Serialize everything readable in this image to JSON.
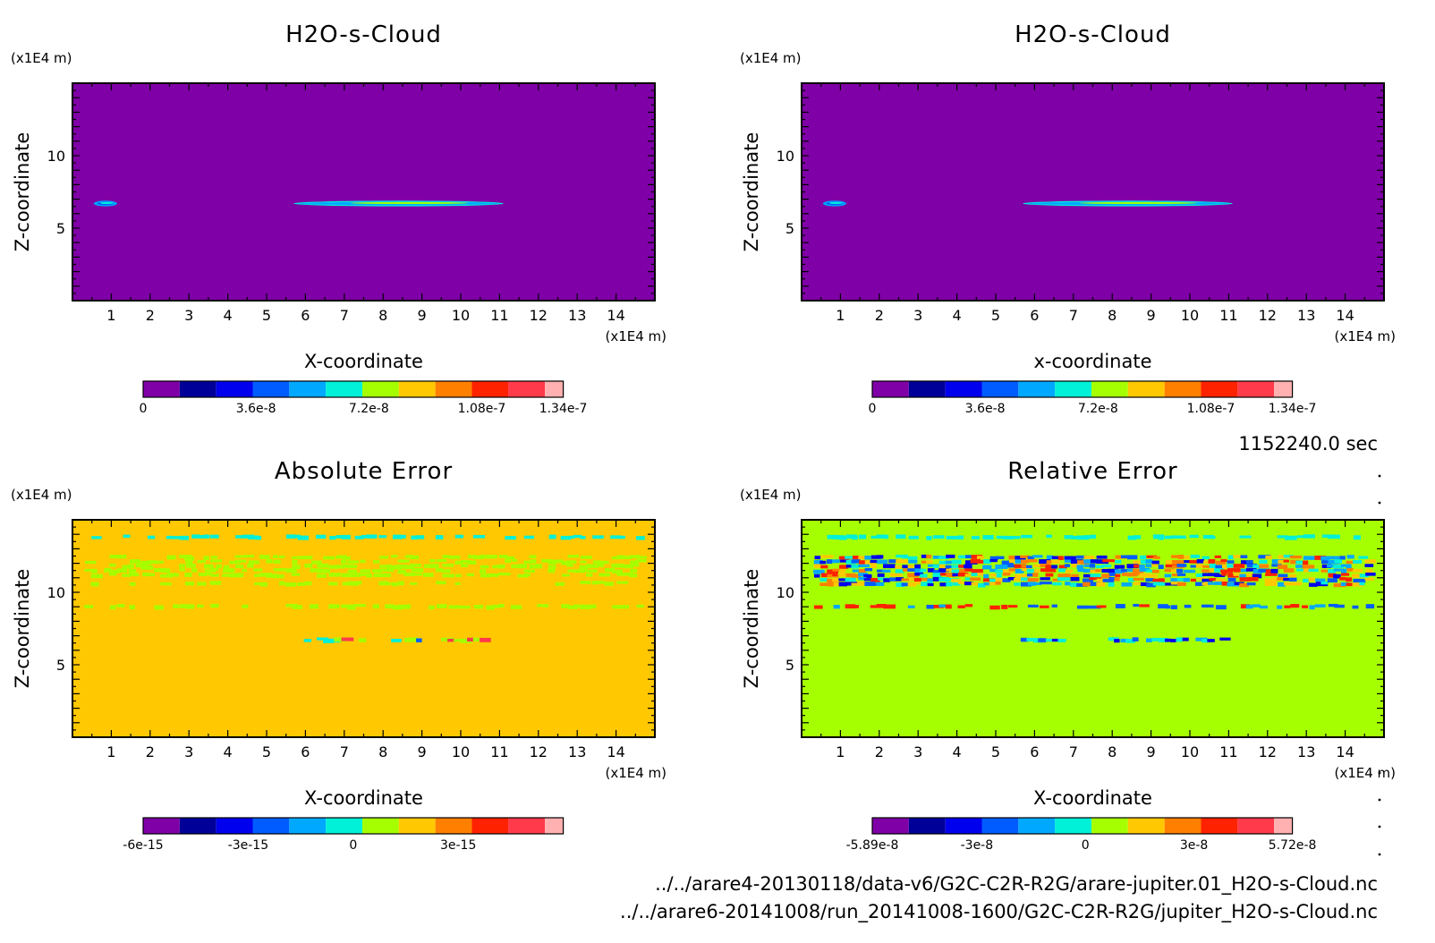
{
  "time_label": "1152240.0 sec",
  "footer": {
    "file1": "../../arare4-20130118/data-v6/G2C-C2R-R2G/arare-jupiter.01_H2O-s-Cloud.nc",
    "file2": "../../arare6-20141008/run_20141008-1600/G2C-C2R-R2G/jupiter_H2O-s-Cloud.nc"
  },
  "colors": {
    "scale": [
      "#7f00a6",
      "#000099",
      "#0000ee",
      "#005cff",
      "#00a8ff",
      "#00f0d8",
      "#a6ff00",
      "#ffc800",
      "#ff7f00",
      "#ff2200",
      "#ff3a4a",
      "#ffb0b0"
    ],
    "frame": "#000000"
  },
  "chart_data": [
    {
      "type": "heatmap",
      "title": "H2O-s-Cloud",
      "xlabel": "X-coordinate",
      "ylabel": "Z-coordinate",
      "x_unit": "(x1E4 m)",
      "y_unit": "(x1E4 m)",
      "xlim": [
        0,
        15
      ],
      "ylim": [
        0,
        15
      ],
      "xticks": [
        1,
        2,
        3,
        4,
        5,
        6,
        7,
        8,
        9,
        10,
        11,
        12,
        13,
        14
      ],
      "yticks": [
        5,
        10
      ],
      "background_color": "#7f00a6",
      "colorbar": {
        "min": 0,
        "max": 1.34e-07,
        "labels": [
          "0",
          "3.6e-8",
          "7.2e-8",
          "1.08e-7",
          "1.34e-7"
        ],
        "label_values": [
          0,
          3.6e-08,
          7.2e-08,
          1.08e-07,
          1.34e-07
        ]
      },
      "features": [
        {
          "x": [
            0.55,
            1.15
          ],
          "z": 6.7,
          "level": 4
        },
        {
          "x": [
            5.7,
            11.1
          ],
          "z": 6.7,
          "level": 5
        }
      ]
    },
    {
      "type": "heatmap",
      "title": "H2O-s-Cloud",
      "xlabel": "x-coordinate",
      "ylabel": "Z-coordinate",
      "x_unit": "(x1E4 m)",
      "y_unit": "(x1E4 m)",
      "xlim": [
        0,
        15
      ],
      "ylim": [
        0,
        15
      ],
      "xticks": [
        1,
        2,
        3,
        4,
        5,
        6,
        7,
        8,
        9,
        10,
        11,
        12,
        13,
        14
      ],
      "yticks": [
        5,
        10
      ],
      "background_color": "#7f00a6",
      "colorbar": {
        "min": 0,
        "max": 1.34e-07,
        "labels": [
          "0",
          "3.6e-8",
          "7.2e-8",
          "1.08e-7",
          "1.34e-7"
        ],
        "label_values": [
          0,
          3.6e-08,
          7.2e-08,
          1.08e-07,
          1.34e-07
        ]
      },
      "features": [
        {
          "x": [
            0.55,
            1.15
          ],
          "z": 6.7,
          "level": 4
        },
        {
          "x": [
            5.7,
            11.1
          ],
          "z": 6.7,
          "level": 5
        }
      ]
    },
    {
      "type": "heatmap",
      "title": "Absolute Error",
      "xlabel": "X-coordinate",
      "ylabel": "Z-coordinate",
      "x_unit": "(x1E4 m)",
      "y_unit": "(x1E4 m)",
      "xlim": [
        0,
        15
      ],
      "ylim": [
        0,
        15
      ],
      "xticks": [
        1,
        2,
        3,
        4,
        5,
        6,
        7,
        8,
        9,
        10,
        11,
        12,
        13,
        14
      ],
      "yticks": [
        5,
        10
      ],
      "background_color": "#ffc800",
      "colorbar": {
        "min": -6e-15,
        "max": 6e-15,
        "labels": [
          "-6e-15",
          "-3e-15",
          "0",
          "3e-15"
        ],
        "label_values": [
          -6e-15,
          -3e-15,
          0,
          3e-15
        ]
      },
      "noise_bands": [
        {
          "z": [
            13.6,
            14.0
          ],
          "density": 0.55,
          "palette": [
            5
          ]
        },
        {
          "z": [
            11.2,
            12.6
          ],
          "density": 0.45,
          "palette": [
            6
          ]
        },
        {
          "z": [
            10.4,
            10.8
          ],
          "density": 0.35,
          "palette": [
            6
          ]
        },
        {
          "z": [
            8.9,
            9.2
          ],
          "density": 0.5,
          "palette": [
            6
          ]
        },
        {
          "z": [
            6.6,
            6.9
          ],
          "density": 0.55,
          "palette": [
            5,
            6,
            3,
            10
          ],
          "x": [
            5.6,
            11.0
          ]
        }
      ]
    },
    {
      "type": "heatmap",
      "title": "Relative Error",
      "xlabel": "X-coordinate",
      "ylabel": "Z-coordinate",
      "x_unit": "(x1E4 m)",
      "y_unit": "(x1E4 m)",
      "xlim": [
        0,
        15
      ],
      "ylim": [
        0,
        15
      ],
      "xticks": [
        1,
        2,
        3,
        4,
        5,
        6,
        7,
        8,
        9,
        10,
        11,
        12,
        13,
        14
      ],
      "yticks": [
        5,
        10
      ],
      "background_color": "#a6ff00",
      "colorbar": {
        "min": -5.89e-08,
        "max": 5.72e-08,
        "labels": [
          "-5.89e-8",
          "-3e-8",
          "0",
          "3e-8",
          "5.72e-8"
        ],
        "label_values": [
          -5.89e-08,
          -3e-08,
          0,
          3e-08,
          5.72e-08
        ]
      },
      "noise_bands": [
        {
          "z": [
            13.6,
            14.0
          ],
          "density": 0.55,
          "palette": [
            5
          ]
        },
        {
          "z": [
            10.4,
            12.6
          ],
          "density": 0.75,
          "palette": [
            5,
            4,
            3,
            2,
            9,
            8,
            7
          ]
        },
        {
          "z": [
            8.9,
            9.2
          ],
          "density": 0.6,
          "palette": [
            3,
            4,
            9
          ]
        },
        {
          "z": [
            6.6,
            6.9
          ],
          "density": 0.6,
          "palette": [
            4,
            3,
            2,
            5
          ],
          "x": [
            5.6,
            11.0
          ]
        }
      ]
    }
  ]
}
